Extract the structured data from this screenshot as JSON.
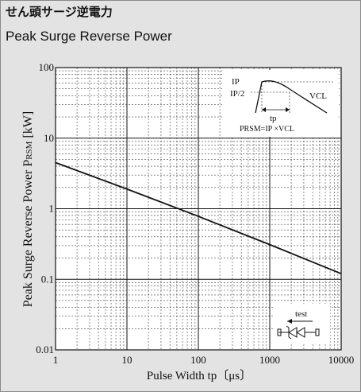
{
  "header": {
    "title_jp": "せん頭サージ逆電力",
    "title_en": "Peak Surge Reverse Power"
  },
  "chart_data": {
    "type": "line",
    "x_scale": "log",
    "y_scale": "log",
    "xlim": [
      1,
      10000
    ],
    "ylim": [
      0.01,
      100
    ],
    "xlabel": "Pulse Width  tp〔μs〕",
    "ylabel": "Peak Surge Reverse Power P",
    "ylabel_sub": "RSM",
    "ylabel_unit": "[kW]",
    "x_ticks": [
      {
        "value": 1,
        "label": "1"
      },
      {
        "value": 10,
        "label": "10"
      },
      {
        "value": 100,
        "label": "100"
      },
      {
        "value": 1000,
        "label": "1000"
      },
      {
        "value": 10000,
        "label": "10000"
      }
    ],
    "y_ticks": [
      {
        "value": 100,
        "label": "100"
      },
      {
        "value": 10,
        "label": "10"
      },
      {
        "value": 1,
        "label": "1"
      },
      {
        "value": 0.1,
        "label": "0.1"
      },
      {
        "value": 0.01,
        "label": "0.01"
      }
    ],
    "grid": true,
    "series": [
      {
        "x": [
          1,
          10,
          100,
          1000,
          10000
        ],
        "y": [
          4.5,
          1.9,
          0.78,
          0.31,
          0.12
        ]
      }
    ]
  },
  "inset_waveform": {
    "ip_label": "IP",
    "ip_half_label": "IP/2",
    "vcl_label": "VCL",
    "tp_label": "tp",
    "formula": "PRSM=IP ×VCL"
  },
  "inset_test": {
    "label": "test"
  }
}
